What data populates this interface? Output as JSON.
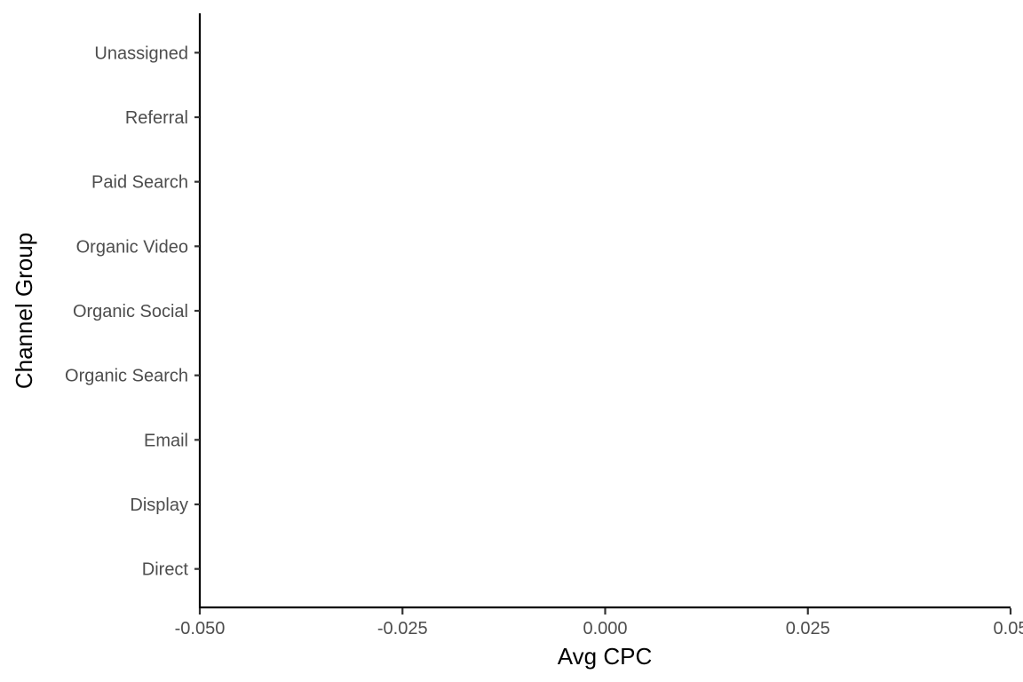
{
  "chart_data": {
    "type": "bar",
    "orientation": "horizontal",
    "categories": [
      "Direct",
      "Display",
      "Email",
      "Organic Search",
      "Organic Social",
      "Organic Video",
      "Paid Search",
      "Referral",
      "Unassigned"
    ],
    "values": [
      0,
      0,
      0,
      0,
      0,
      0,
      0,
      0,
      0
    ],
    "xlabel": "Avg CPC",
    "ylabel": "Channel Group",
    "xlim": [
      -0.05,
      0.05
    ],
    "x_ticks": [
      -0.05,
      -0.025,
      0,
      0.025,
      0.05
    ],
    "x_tick_labels": [
      "-0.050",
      "-0.025",
      "0.000",
      "0.025",
      "0.05"
    ],
    "grid": false,
    "legend": "none",
    "colors": {
      "axis": "#000000",
      "tick_label": "#4d4d4d",
      "background": "#ffffff"
    }
  }
}
